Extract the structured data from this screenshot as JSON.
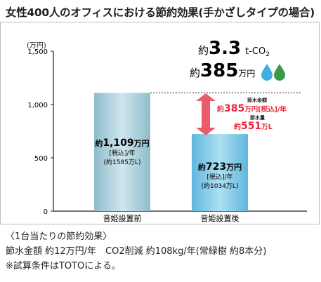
{
  "chart_data": {
    "type": "bar",
    "title": "女性400人のオフィスにおける節約効果(手かざしタイプの場合)",
    "ylabel": "(万円)",
    "ylim": [
      0,
      1500
    ],
    "yticks": [
      "1,500",
      "1,000",
      "500",
      "0"
    ],
    "categories": [
      "音姫設置前",
      "音姫設置後"
    ],
    "values": [
      1109,
      723
    ],
    "bar_labels": [
      {
        "main_prefix": "約",
        "main_num": "1,109",
        "main_unit": "万円",
        "sub1": "[税込]/年",
        "sub2": "(約1585万L)"
      },
      {
        "main_prefix": "約",
        "main_num": "723",
        "main_unit": "万円",
        "sub1": "[税込]/年",
        "sub2": "(約1034万L)"
      }
    ],
    "savings": {
      "money_label": "節水金額",
      "money_prefix": "約",
      "money_value": "385",
      "money_unit": "万円[税込]/年",
      "water_label": "節水量",
      "water_prefix": "約",
      "water_value": "551",
      "water_unit": "万L"
    },
    "badge": {
      "co2_prefix": "約",
      "co2_value": "3.3",
      "co2_unit": "t-CO",
      "co2_sub": "2",
      "money_prefix": "約",
      "money_value": "385",
      "money_unit": "万円"
    },
    "colors": {
      "bar_before": "#a8ccd8",
      "bar_after": "#7cc7e6",
      "arrow": "#e85c6e",
      "savings_text": "#e8283c",
      "drop_blue": "#3fb0e0",
      "drop_green": "#3a9a4a"
    }
  },
  "notes": {
    "line1": "〈1台当たりの節約効果〉",
    "line2": "節水金額 約12万円/年　CO2削減 約108kg/年(常緑樹 約8本分)",
    "line3": "※試算条件はTOTOによる。"
  }
}
